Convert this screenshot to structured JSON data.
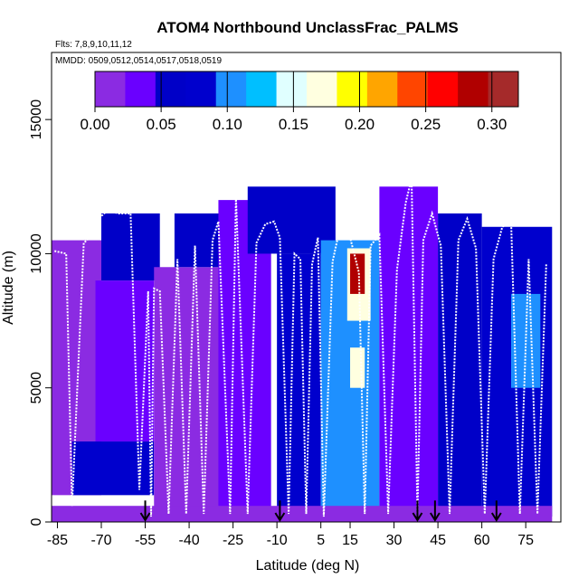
{
  "header": {
    "title": "ATOM4 Northbound UnclassFrac_PALMS",
    "flights_note": "Flts: 7,8,9,10,11,12",
    "mmdd_note": "MMDD: 0509,0512,0514,0517,0518,0519"
  },
  "chart_data": {
    "type": "heatmap",
    "title": "ATOM4 Northbound UnclassFrac_PALMS",
    "xlabel": "Latitude (deg N)",
    "ylabel": "Altitude (m)",
    "xlim": [
      -87,
      87
    ],
    "ylim": [
      0,
      17500
    ],
    "x_ticks": [
      -85,
      -70,
      -55,
      -40,
      -25,
      -10,
      5,
      15,
      30,
      45,
      60,
      75
    ],
    "x_tick_labels": [
      "-85",
      "-70",
      "-55",
      "-40",
      "-25",
      "-10",
      "5",
      "15",
      "30",
      "45",
      "60",
      "75"
    ],
    "y_ticks": [
      0,
      5000,
      10000,
      15000
    ],
    "y_tick_labels": [
      "0",
      "5000",
      "10000",
      "15000"
    ],
    "colorbar": {
      "range": [
        0,
        0.32
      ],
      "ticks": [
        0.0,
        0.05,
        0.1,
        0.15,
        0.2,
        0.25,
        0.3
      ],
      "tick_labels": [
        "0.00",
        "0.05",
        "0.10",
        "0.15",
        "0.20",
        "0.25",
        "0.30"
      ],
      "colors": [
        "#8b2be2",
        "#6a00ff",
        "#0000c8",
        "#0000cd",
        "#1e90ff",
        "#00bfff",
        "#e0ffff",
        "#ffffe0",
        "#ffff00",
        "#ffa500",
        "#ff4500",
        "#ff0000",
        "#b00000",
        "#a52a2a"
      ]
    },
    "grid": false,
    "field_regions": [
      {
        "lat": [
          -87,
          -70
        ],
        "alt": [
          1000,
          10500
        ],
        "value": 0.02
      },
      {
        "lat": [
          -80,
          -52
        ],
        "alt": [
          1000,
          3000
        ],
        "value": 0.08
      },
      {
        "lat": [
          -72,
          -52
        ],
        "alt": [
          3000,
          9000
        ],
        "value": 0.03
      },
      {
        "lat": [
          -70,
          -50
        ],
        "alt": [
          9000,
          11500
        ],
        "value": 0.05
      },
      {
        "lat": [
          -52,
          -25
        ],
        "alt": [
          200,
          9500
        ],
        "value": 0.02
      },
      {
        "lat": [
          -45,
          -20
        ],
        "alt": [
          9500,
          11500
        ],
        "value": 0.05
      },
      {
        "lat": [
          -30,
          -12
        ],
        "alt": [
          200,
          12000
        ],
        "value": 0.03
      },
      {
        "lat": [
          -20,
          10
        ],
        "alt": [
          10000,
          12500
        ],
        "value": 0.06
      },
      {
        "lat": [
          -10,
          5
        ],
        "alt": [
          200,
          10000
        ],
        "value": 0.09
      },
      {
        "lat": [
          5,
          25
        ],
        "alt": [
          200,
          10500
        ],
        "value": 0.11
      },
      {
        "lat": [
          14,
          22
        ],
        "alt": [
          7500,
          10200
        ],
        "value": 0.16
      },
      {
        "lat": [
          15,
          20
        ],
        "alt": [
          8500,
          10000
        ],
        "value": 0.29
      },
      {
        "lat": [
          15,
          20
        ],
        "alt": [
          5000,
          6500
        ],
        "value": 0.18
      },
      {
        "lat": [
          25,
          45
        ],
        "alt": [
          200,
          12500
        ],
        "value": 0.04
      },
      {
        "lat": [
          45,
          60
        ],
        "alt": [
          200,
          11500
        ],
        "value": 0.05
      },
      {
        "lat": [
          60,
          84
        ],
        "alt": [
          200,
          11000
        ],
        "value": 0.07
      },
      {
        "lat": [
          70,
          80
        ],
        "alt": [
          5000,
          8500
        ],
        "value": 0.11
      },
      {
        "lat": [
          -87,
          84
        ],
        "alt": [
          0,
          600
        ],
        "value": 0.02
      }
    ],
    "flight_tracks": [
      {
        "lat": [
          -86,
          -82,
          -80,
          -76,
          -74,
          -71,
          -68,
          -64,
          -60,
          -57,
          -54,
          -53,
          -52,
          -50,
          -47,
          -44,
          -41,
          -38,
          -35,
          -32,
          -30,
          -26,
          -24,
          -20,
          -17,
          -14,
          -11,
          -9,
          -6,
          -4,
          -2,
          0,
          2,
          4,
          6,
          9,
          12,
          15,
          18,
          20,
          22,
          25,
          28,
          31,
          34,
          36,
          38,
          40,
          43,
          46,
          49,
          52,
          55,
          58,
          61,
          64,
          67,
          70,
          73,
          76,
          79,
          82
        ],
        "alt": [
          10100,
          10000,
          600,
          10400,
          10600,
          11300,
          11600,
          11500,
          11500,
          1200,
          8600,
          200,
          8700,
          8600,
          300,
          9800,
          300,
          10300,
          300,
          10500,
          11200,
          300,
          12100,
          300,
          10400,
          11100,
          11200,
          10600,
          300,
          10000,
          9800,
          300,
          9600,
          10600,
          200,
          9700,
          11200,
          10600,
          9300,
          300,
          10300,
          10700,
          300,
          9400,
          11900,
          12800,
          300,
          10500,
          11500,
          10300,
          300,
          10500,
          11300,
          10200,
          300,
          9800,
          11000,
          11200,
          300,
          9800,
          300,
          9600
        ]
      }
    ],
    "markers": [
      {
        "lat": -55,
        "label": "arrow"
      },
      {
        "lat": -9,
        "label": "arrow"
      },
      {
        "lat": 38,
        "label": "arrow"
      },
      {
        "lat": 44,
        "label": "arrow"
      },
      {
        "lat": 65,
        "label": "arrow"
      }
    ]
  }
}
